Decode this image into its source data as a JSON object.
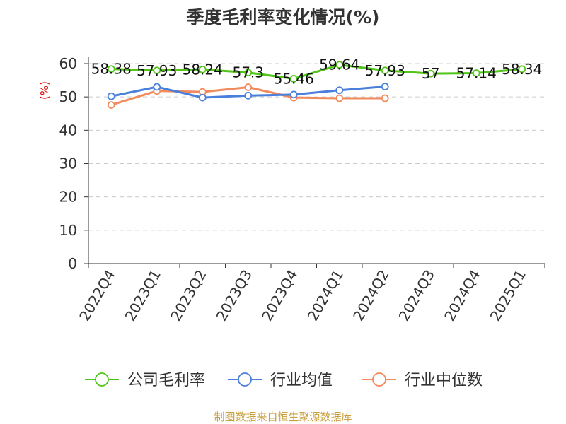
{
  "chart_data": {
    "type": "line",
    "title": "季度毛利率变化情况(%)",
    "ylabel": "(%)",
    "categories": [
      "2022Q4",
      "2023Q1",
      "2023Q2",
      "2023Q3",
      "2023Q4",
      "2024Q1",
      "2024Q2",
      "2024Q3",
      "2024Q4",
      "2025Q1"
    ],
    "ylim": [
      0,
      60
    ],
    "yticks": [
      0,
      10,
      20,
      30,
      40,
      50,
      60
    ],
    "grid": true,
    "legend_position": "bottom",
    "series": [
      {
        "name": "公司毛利率",
        "color": "#52c41a",
        "values": [
          58.38,
          57.93,
          58.24,
          57.3,
          55.46,
          59.64,
          57.93,
          57,
          57.14,
          58.34
        ],
        "labels": [
          "58.38",
          "57.93",
          "58.24",
          "57.3",
          "55.46",
          "59.64",
          "57.93",
          "57",
          "57.14",
          "58.34"
        ]
      },
      {
        "name": "行业均值",
        "color": "#4a7fdc",
        "values": [
          50.2,
          53.0,
          49.8,
          50.4,
          50.7,
          52.0,
          53.1,
          null,
          null,
          null
        ]
      },
      {
        "name": "行业中位数",
        "color": "#f28a5c",
        "values": [
          47.6,
          51.8,
          51.5,
          52.9,
          49.8,
          49.6,
          49.6,
          null,
          null,
          null
        ]
      }
    ],
    "source": "制图数据来自恒生聚源数据库"
  }
}
